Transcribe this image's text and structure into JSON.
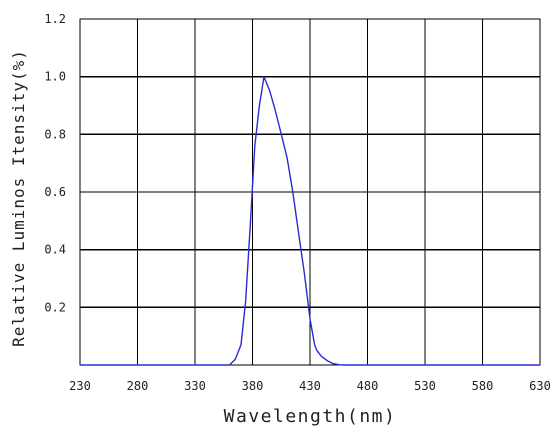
{
  "chart_data": {
    "type": "line",
    "title": "",
    "xlabel": "Wavelength(nm)",
    "ylabel": "Relative Luminos Itensity(%)",
    "xlim": [
      230,
      630
    ],
    "ylim": [
      0,
      1.2
    ],
    "grid": true,
    "x_tick_labels": [
      "230",
      "280",
      "330",
      "380",
      "430",
      "480",
      "530",
      "580",
      "630"
    ],
    "y_tick_labels": [
      "0.2",
      "0.4",
      "0.6",
      "0.8",
      "1.0",
      "1.2"
    ],
    "series": [
      {
        "color": "#2b2bd6",
        "x": [
          230,
          360,
          365,
          370,
          374,
          378,
          382,
          386,
          390,
          395,
          400,
          405,
          410,
          415,
          420,
          425,
          430,
          434,
          436,
          440,
          445,
          450,
          455,
          460,
          630
        ],
        "y": [
          0,
          0,
          0.02,
          0.07,
          0.22,
          0.48,
          0.76,
          0.9,
          1.0,
          0.95,
          0.88,
          0.8,
          0.72,
          0.6,
          0.46,
          0.32,
          0.16,
          0.07,
          0.05,
          0.03,
          0.015,
          0.005,
          0.001,
          0,
          0
        ]
      }
    ]
  }
}
